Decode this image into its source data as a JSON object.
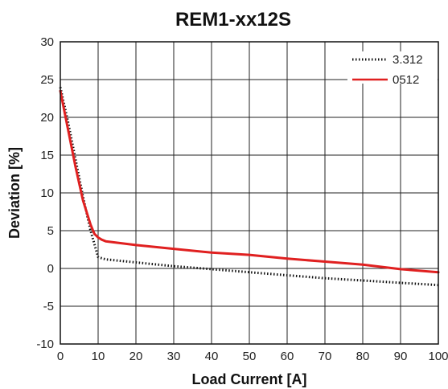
{
  "chart_data": {
    "type": "line",
    "title": "REM1-xx12S",
    "xlabel": "Load Current [A]",
    "ylabel": "Deviation [%]",
    "xlim": [
      0,
      100
    ],
    "ylim": [
      -10,
      30
    ],
    "xticks": [
      0,
      10,
      20,
      30,
      40,
      50,
      60,
      70,
      80,
      90,
      100
    ],
    "yticks": [
      -10,
      -5,
      0,
      5,
      10,
      15,
      20,
      25,
      30
    ],
    "grid": true,
    "legend_position": "top-right",
    "series": [
      {
        "name": "3.312",
        "color": "#111111",
        "style": "dotted",
        "x": [
          0,
          2,
          4,
          6,
          8,
          10,
          12,
          20,
          30,
          40,
          50,
          60,
          70,
          80,
          90,
          100
        ],
        "y": [
          24,
          19.5,
          14.5,
          9.5,
          5,
          1.5,
          1.2,
          0.8,
          0.3,
          -0.1,
          -0.5,
          -0.9,
          -1.3,
          -1.6,
          -1.9,
          -2.2
        ]
      },
      {
        "name": "0512",
        "color": "#e02020",
        "style": "solid",
        "x": [
          0,
          2,
          4,
          6,
          8,
          9,
          10,
          11,
          12,
          20,
          30,
          40,
          50,
          60,
          70,
          80,
          90,
          100
        ],
        "y": [
          23.5,
          18.5,
          13.5,
          9,
          5.8,
          4.6,
          4.1,
          3.8,
          3.6,
          3.1,
          2.6,
          2.1,
          1.8,
          1.3,
          0.9,
          0.5,
          -0.1,
          -0.5
        ]
      }
    ]
  }
}
